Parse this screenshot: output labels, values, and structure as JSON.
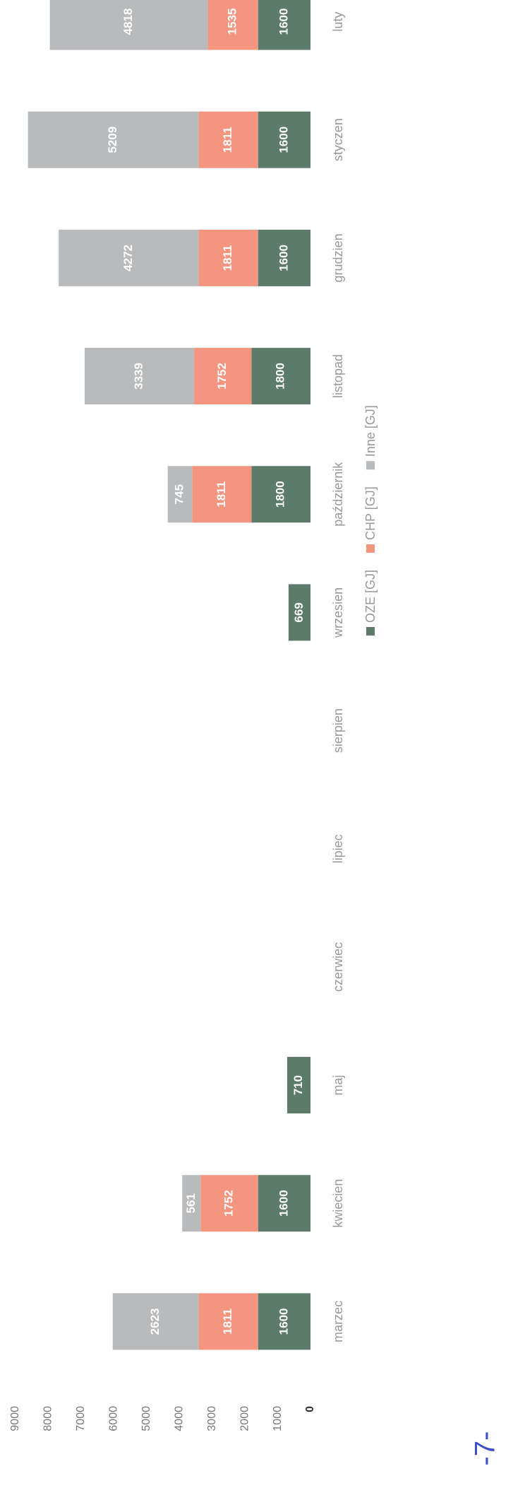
{
  "chart_data": {
    "type": "stacked_bar",
    "categories": [
      "marzec",
      "kwiecien",
      "maj",
      "czerwiec",
      "lipiec",
      "sierpien",
      "wrzesien",
      "październik",
      "listopad",
      "grudzien",
      "styczen",
      "luty"
    ],
    "series": [
      {
        "name": "OZE [GJ]",
        "color": "#5d7b6a",
        "values": [
          1600,
          1600,
          710,
          null,
          null,
          null,
          669,
          1800,
          1800,
          1600,
          1600,
          1600
        ]
      },
      {
        "name": "CHP [GJ]",
        "color": "#f4957f",
        "values": [
          1811,
          1752,
          null,
          null,
          null,
          null,
          null,
          1811,
          1752,
          1811,
          1811,
          1535
        ]
      },
      {
        "name": "Inne [GJ]",
        "color": "#b9babc",
        "values": [
          2623,
          561,
          null,
          null,
          null,
          null,
          null,
          745,
          3339,
          4272,
          5209,
          4818
        ]
      }
    ],
    "ylim": [
      0,
      9000
    ],
    "yticks": [
      0,
      1000,
      2000,
      3000,
      4000,
      5000,
      6000,
      7000,
      8000,
      9000
    ],
    "grid": false,
    "legend": "bottom",
    "page_number": "-7-"
  }
}
